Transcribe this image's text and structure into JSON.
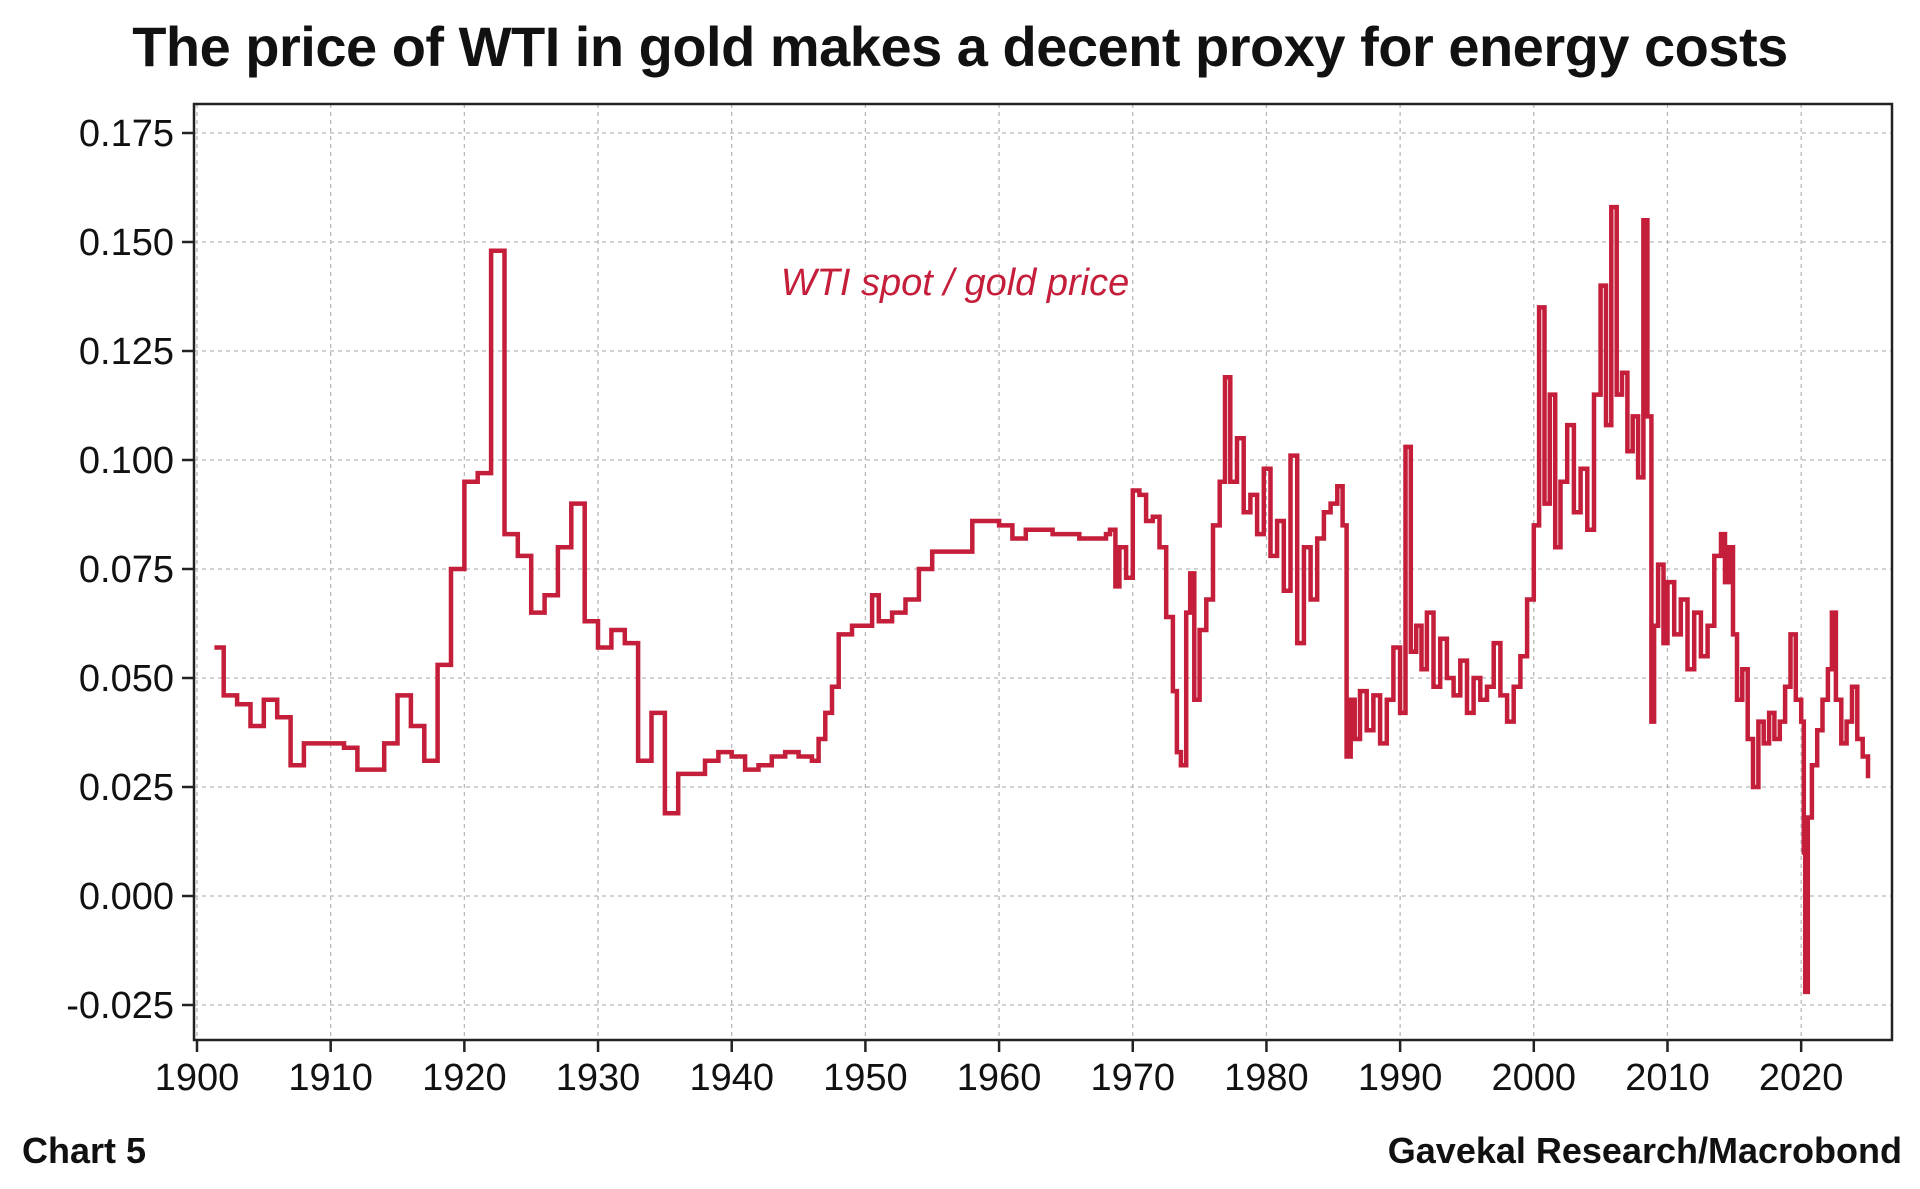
{
  "chart_data": {
    "type": "line",
    "title": "The price of WTI in gold makes a decent proxy for energy costs",
    "xlabel": "",
    "ylabel": "",
    "xlim": [
      1900,
      2025
    ],
    "ylim": [
      -0.035,
      0.18
    ],
    "grid": true,
    "x_ticks": [
      1900,
      1910,
      1920,
      1930,
      1940,
      1950,
      1960,
      1970,
      1980,
      1990,
      2000,
      2010,
      2020
    ],
    "y_ticks": [
      0.175,
      0.15,
      0.125,
      0.1,
      0.075,
      0.05,
      0.025,
      0.0,
      -0.025
    ],
    "y_tick_labels": [
      "0.175",
      "0.150",
      "0.125",
      "0.100",
      "0.075",
      "0.050",
      "0.025",
      "0.000",
      "-0.025"
    ],
    "series": [
      {
        "name": "WTI spot / gold price",
        "color": "#c41e3a",
        "x": [
          1901.3,
          1902.0,
          1903.0,
          1904.0,
          1905.0,
          1906.0,
          1907.0,
          1908.0,
          1909.0,
          1910.0,
          1911.0,
          1912.0,
          1913.0,
          1914.0,
          1915.0,
          1916.0,
          1917.0,
          1918.0,
          1919.0,
          1920.0,
          1921.0,
          1922.0,
          1923.0,
          1924.0,
          1925.0,
          1926.0,
          1927.0,
          1928.0,
          1929.0,
          1930.0,
          1931.0,
          1932.0,
          1933.0,
          1934.0,
          1935.0,
          1936.0,
          1937.0,
          1938.0,
          1939.0,
          1940.0,
          1941.0,
          1942.0,
          1943.0,
          1944.0,
          1945.0,
          1946.0,
          1946.5,
          1947.0,
          1947.5,
          1948.0,
          1949.0,
          1950.0,
          1950.5,
          1951.0,
          1952.0,
          1953.0,
          1954.0,
          1955.0,
          1956.0,
          1957.0,
          1958.0,
          1959.0,
          1960.0,
          1961.0,
          1962.0,
          1963.0,
          1964.0,
          1965.0,
          1966.0,
          1967.0,
          1968.0,
          1968.3,
          1968.7,
          1969.0,
          1969.5,
          1970.0,
          1970.5,
          1971.0,
          1971.5,
          1972.0,
          1972.5,
          1973.0,
          1973.3,
          1973.6,
          1974.0,
          1974.3,
          1974.6,
          1975.0,
          1975.5,
          1976.0,
          1976.5,
          1976.9,
          1977.3,
          1977.8,
          1978.3,
          1978.8,
          1979.3,
          1979.8,
          1980.3,
          1980.8,
          1981.3,
          1981.8,
          1982.3,
          1982.8,
          1983.3,
          1983.8,
          1984.3,
          1984.8,
          1985.3,
          1985.7,
          1986.0,
          1986.3,
          1986.6,
          1987.0,
          1987.5,
          1988.0,
          1988.5,
          1989.0,
          1989.5,
          1990.0,
          1990.4,
          1990.8,
          1991.2,
          1991.6,
          1992.0,
          1992.5,
          1993.0,
          1993.5,
          1994.0,
          1994.5,
          1995.0,
          1995.5,
          1996.0,
          1996.5,
          1997.0,
          1997.5,
          1998.0,
          1998.5,
          1999.0,
          1999.5,
          2000.0,
          2000.4,
          2000.8,
          2001.2,
          2001.6,
          2002.0,
          2002.5,
          2003.0,
          2003.5,
          2004.0,
          2004.5,
          2005.0,
          2005.4,
          2005.8,
          2006.2,
          2006.6,
          2007.0,
          2007.4,
          2007.8,
          2008.2,
          2008.5,
          2008.8,
          2009.0,
          2009.3,
          2009.7,
          2010.0,
          2010.5,
          2011.0,
          2011.5,
          2012.0,
          2012.5,
          2013.0,
          2013.5,
          2014.0,
          2014.3,
          2014.6,
          2014.9,
          2015.2,
          2015.6,
          2016.0,
          2016.4,
          2016.8,
          2017.2,
          2017.6,
          2018.0,
          2018.4,
          2018.8,
          2019.2,
          2019.6,
          2020.0,
          2020.2,
          2020.3,
          2020.5,
          2020.8,
          2021.2,
          2021.6,
          2022.0,
          2022.3,
          2022.6,
          2023.0,
          2023.4,
          2023.8,
          2024.2,
          2024.6,
          2025.0
        ],
        "values": [
          0.057,
          0.046,
          0.044,
          0.039,
          0.045,
          0.041,
          0.03,
          0.035,
          0.035,
          0.035,
          0.034,
          0.029,
          0.029,
          0.035,
          0.046,
          0.039,
          0.031,
          0.053,
          0.075,
          0.095,
          0.097,
          0.148,
          0.083,
          0.078,
          0.065,
          0.069,
          0.08,
          0.09,
          0.063,
          0.057,
          0.061,
          0.058,
          0.031,
          0.042,
          0.019,
          0.028,
          0.028,
          0.031,
          0.033,
          0.032,
          0.029,
          0.03,
          0.032,
          0.033,
          0.032,
          0.031,
          0.036,
          0.042,
          0.048,
          0.06,
          0.062,
          0.062,
          0.069,
          0.063,
          0.065,
          0.068,
          0.075,
          0.079,
          0.079,
          0.079,
          0.086,
          0.086,
          0.085,
          0.082,
          0.084,
          0.084,
          0.083,
          0.083,
          0.082,
          0.082,
          0.083,
          0.084,
          0.071,
          0.08,
          0.073,
          0.093,
          0.092,
          0.086,
          0.087,
          0.08,
          0.064,
          0.047,
          0.033,
          0.03,
          0.065,
          0.074,
          0.045,
          0.061,
          0.068,
          0.085,
          0.095,
          0.119,
          0.095,
          0.105,
          0.088,
          0.092,
          0.083,
          0.098,
          0.078,
          0.086,
          0.07,
          0.101,
          0.058,
          0.08,
          0.068,
          0.082,
          0.088,
          0.09,
          0.094,
          0.085,
          0.032,
          0.045,
          0.036,
          0.047,
          0.038,
          0.046,
          0.035,
          0.045,
          0.057,
          0.042,
          0.103,
          0.056,
          0.062,
          0.052,
          0.065,
          0.048,
          0.059,
          0.05,
          0.046,
          0.054,
          0.042,
          0.05,
          0.045,
          0.048,
          0.058,
          0.046,
          0.04,
          0.048,
          0.055,
          0.068,
          0.085,
          0.135,
          0.09,
          0.115,
          0.08,
          0.095,
          0.108,
          0.088,
          0.098,
          0.084,
          0.115,
          0.14,
          0.108,
          0.158,
          0.115,
          0.12,
          0.102,
          0.11,
          0.096,
          0.155,
          0.11,
          0.04,
          0.062,
          0.076,
          0.058,
          0.072,
          0.06,
          0.068,
          0.052,
          0.065,
          0.055,
          0.062,
          0.078,
          0.083,
          0.072,
          0.08,
          0.06,
          0.045,
          0.052,
          0.036,
          0.025,
          0.04,
          0.035,
          0.042,
          0.036,
          0.04,
          0.048,
          0.06,
          0.045,
          0.04,
          0.01,
          -0.022,
          0.018,
          0.03,
          0.038,
          0.045,
          0.052,
          0.065,
          0.045,
          0.035,
          0.04,
          0.048,
          0.036,
          0.032,
          0.027
        ]
      }
    ]
  },
  "series_label": "WTI spot / gold price",
  "footer": {
    "left": "Chart 5",
    "right": "Gavekal Research/Macrobond"
  },
  "colors": {
    "series": "#c41e3a",
    "grid": "#b8b8b8",
    "axis": "#222222"
  }
}
